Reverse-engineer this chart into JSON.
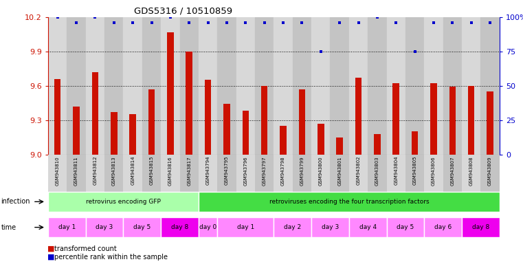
{
  "title": "GDS5316 / 10510859",
  "samples": [
    "GSM943810",
    "GSM943811",
    "GSM943812",
    "GSM943813",
    "GSM943814",
    "GSM943815",
    "GSM943816",
    "GSM943817",
    "GSM943794",
    "GSM943795",
    "GSM943796",
    "GSM943797",
    "GSM943798",
    "GSM943799",
    "GSM943800",
    "GSM943801",
    "GSM943802",
    "GSM943803",
    "GSM943804",
    "GSM943805",
    "GSM943806",
    "GSM943807",
    "GSM943808",
    "GSM943809"
  ],
  "bar_values": [
    9.66,
    9.42,
    9.72,
    9.37,
    9.35,
    9.57,
    10.07,
    9.9,
    9.65,
    9.44,
    9.38,
    9.6,
    9.25,
    9.57,
    9.27,
    9.15,
    9.67,
    9.18,
    9.62,
    9.2,
    9.62,
    9.59,
    9.6,
    9.55
  ],
  "percentile_values": [
    100,
    96,
    100,
    96,
    96,
    96,
    100,
    96,
    96,
    96,
    96,
    96,
    96,
    96,
    75,
    96,
    96,
    100,
    96,
    75,
    96,
    96,
    96,
    96
  ],
  "ymin": 9.0,
  "ymax": 10.2,
  "yticks_left": [
    9.0,
    9.3,
    9.6,
    9.9,
    10.2
  ],
  "yticks_right": [
    0,
    25,
    50,
    75,
    100
  ],
  "bar_color": "#cc1100",
  "dot_color": "#0000cc",
  "col_colors": [
    "#d8d8d8",
    "#c4c4c4"
  ],
  "infection_groups": [
    {
      "label": "retrovirus encoding GFP",
      "start": 0,
      "end": 7,
      "color": "#aaffaa"
    },
    {
      "label": "retroviruses encoding the four transcription factors",
      "start": 8,
      "end": 23,
      "color": "#44dd44"
    }
  ],
  "time_groups": [
    {
      "label": "day 1",
      "start": 0,
      "end": 1,
      "color": "#ff88ff"
    },
    {
      "label": "day 3",
      "start": 2,
      "end": 3,
      "color": "#ff88ff"
    },
    {
      "label": "day 5",
      "start": 4,
      "end": 5,
      "color": "#ff88ff"
    },
    {
      "label": "day 8",
      "start": 6,
      "end": 7,
      "color": "#ee00ee"
    },
    {
      "label": "day 0",
      "start": 8,
      "end": 8,
      "color": "#ff88ff"
    },
    {
      "label": "day 1",
      "start": 9,
      "end": 11,
      "color": "#ff88ff"
    },
    {
      "label": "day 2",
      "start": 12,
      "end": 13,
      "color": "#ff88ff"
    },
    {
      "label": "day 3",
      "start": 14,
      "end": 15,
      "color": "#ff88ff"
    },
    {
      "label": "day 4",
      "start": 16,
      "end": 17,
      "color": "#ff88ff"
    },
    {
      "label": "day 5",
      "start": 18,
      "end": 19,
      "color": "#ff88ff"
    },
    {
      "label": "day 6",
      "start": 20,
      "end": 21,
      "color": "#ff88ff"
    },
    {
      "label": "day 8",
      "start": 22,
      "end": 23,
      "color": "#ee00ee"
    }
  ]
}
